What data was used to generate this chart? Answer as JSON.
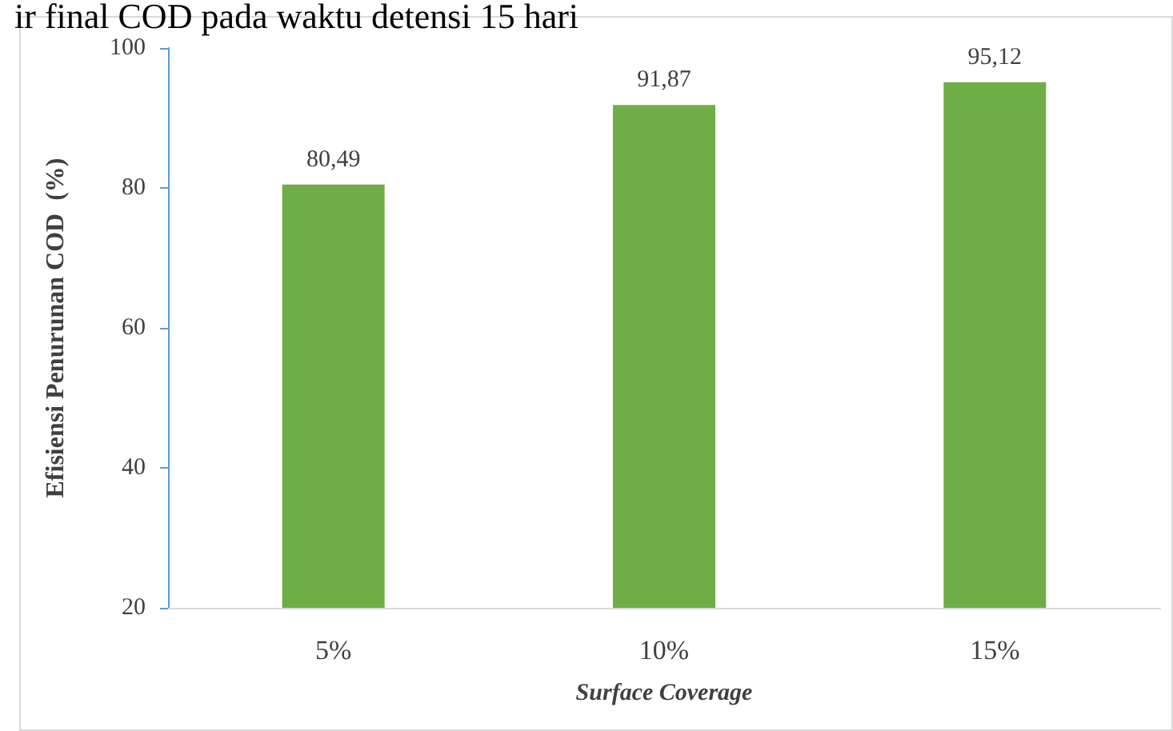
{
  "chart_data": {
    "type": "bar",
    "title": "ir final COD pada waktu detensi 15 hari",
    "categories": [
      "5%",
      "10%",
      "15%"
    ],
    "values": [
      80.49,
      91.87,
      95.12
    ],
    "value_labels": [
      "80,49",
      "91,87",
      "95,12"
    ],
    "color": "#70ad47",
    "xlabel": "Surface Coverage",
    "ylabel": "Efisiensi Penurunan COD  (%)",
    "ylim": [
      20,
      100
    ],
    "yticks": [
      20,
      40,
      60,
      80,
      100
    ],
    "grid": false
  }
}
